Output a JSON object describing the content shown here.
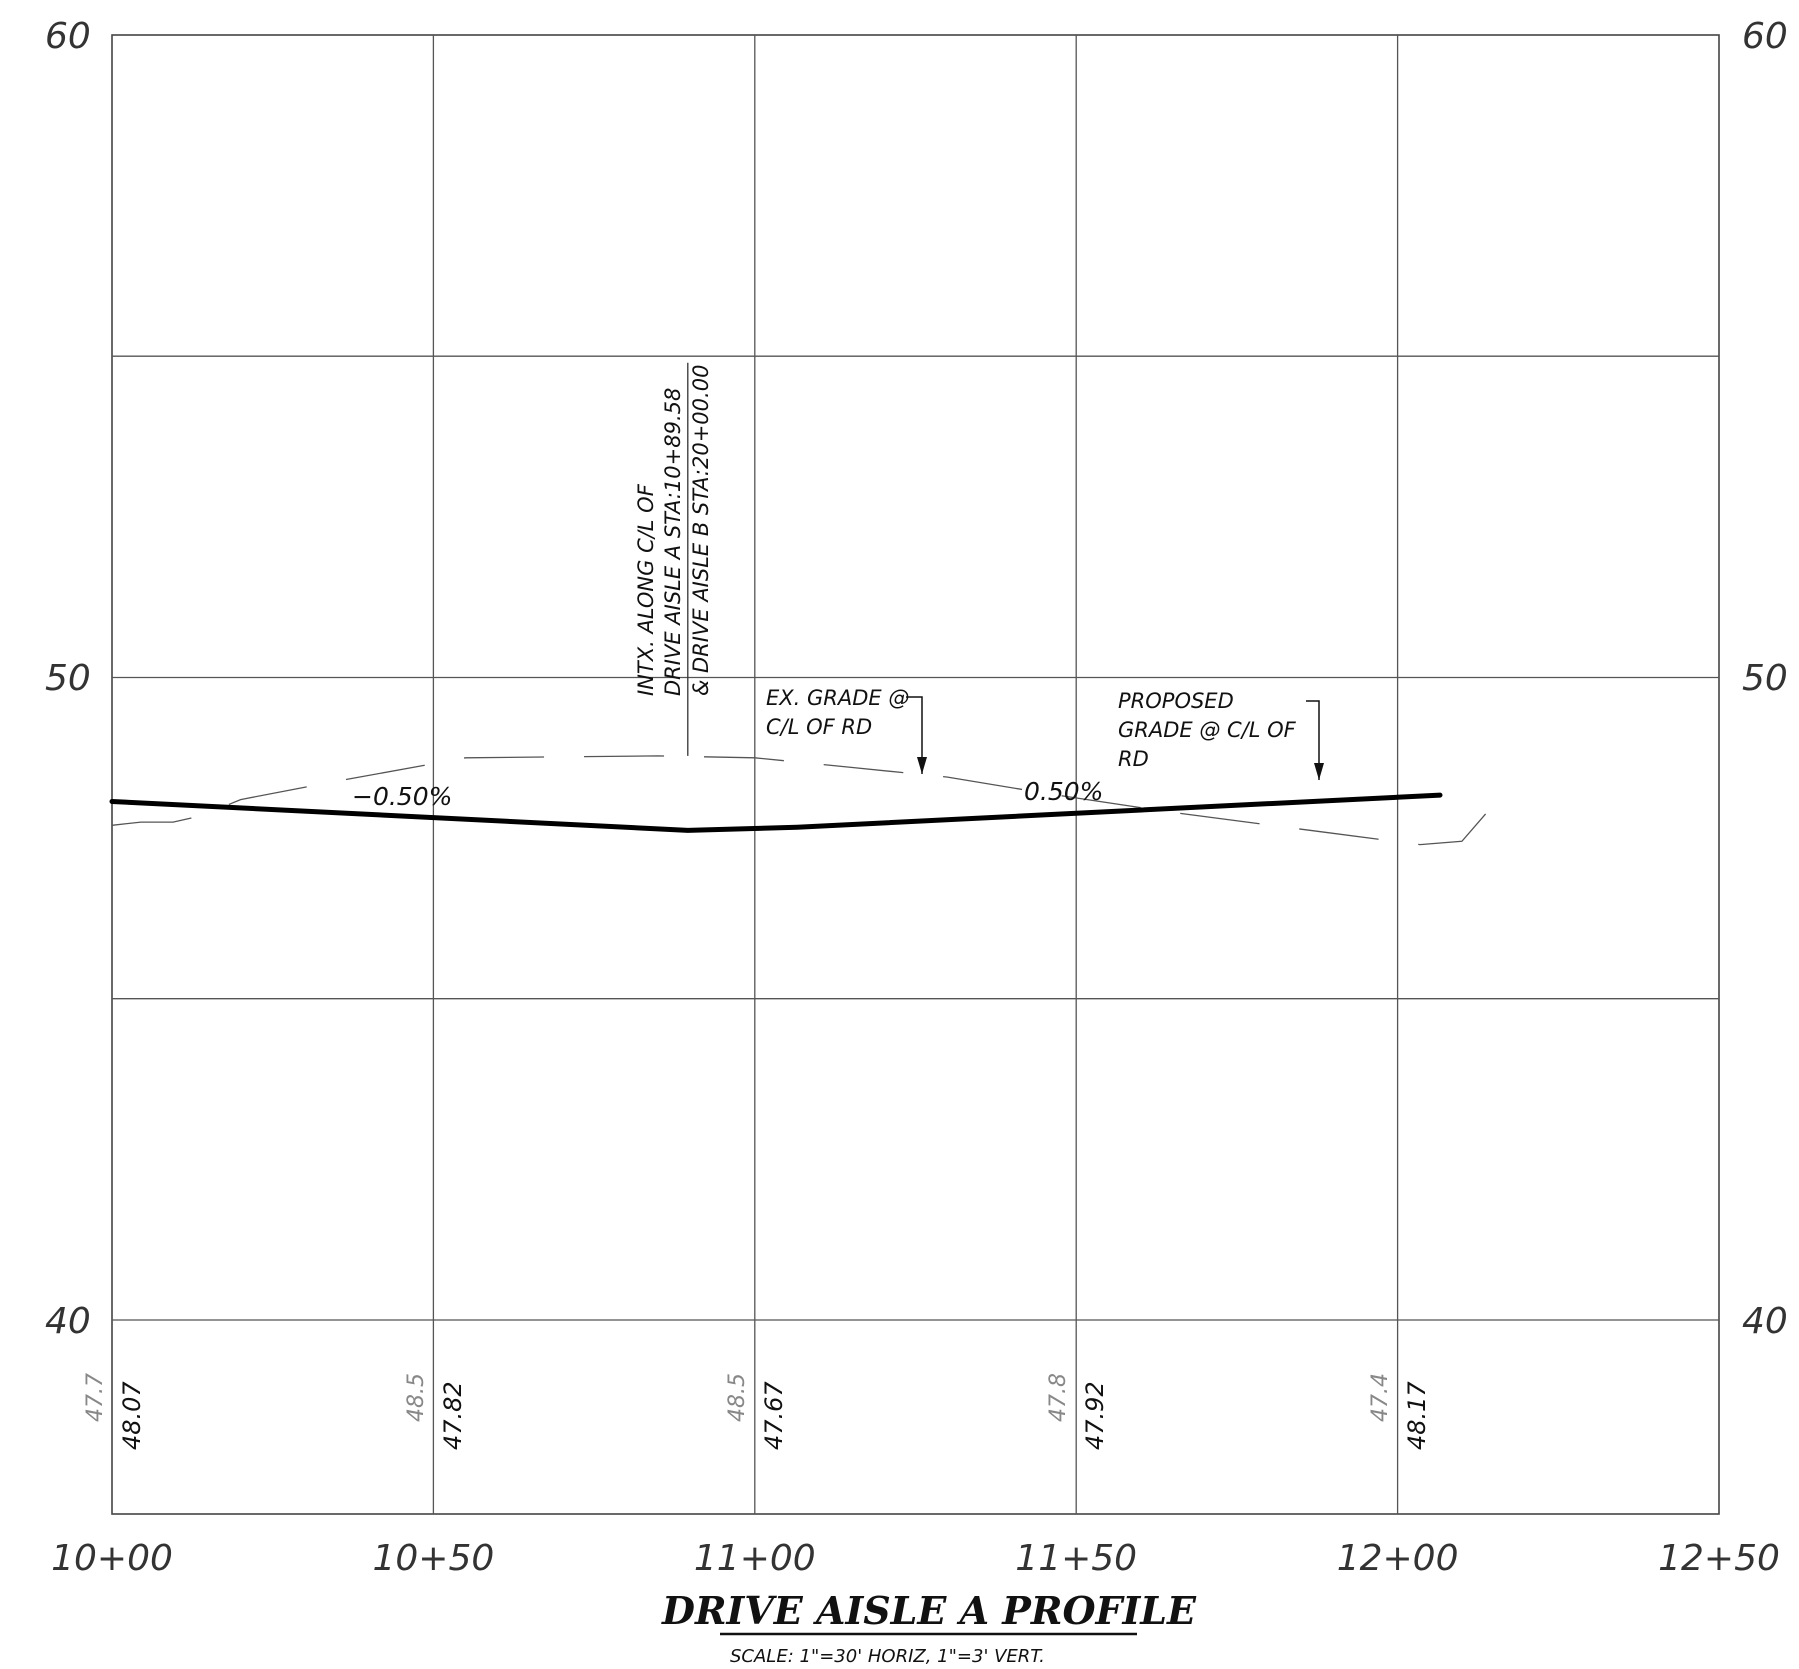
{
  "chart_data": {
    "type": "line",
    "title": "DRIVE AISLE A PROFILE",
    "subtitle": "SCALE:  1\"=30'  HORIZ,  1\"=3'  VERT.",
    "x_ticks": [
      "10+00",
      "10+50",
      "11+00",
      "11+50",
      "12+00",
      "12+50"
    ],
    "x_range_ft": [
      1000,
      1250
    ],
    "y_ticks": [
      "60",
      "50",
      "40"
    ],
    "ylim": [
      37,
      60
    ],
    "grid": true,
    "series": [
      {
        "style": "solid-heavy",
        "points": [
          [
            1000,
            48.07
          ],
          [
            1089.58,
            47.62
          ],
          [
            1106.6,
            47.67
          ],
          [
            1206.6,
            48.17
          ]
        ]
      },
      {
        "style": "dashed",
        "points": [
          [
            1000,
            47.7
          ],
          [
            1004.5,
            47.75
          ],
          [
            1009.5,
            47.75
          ],
          [
            1014,
            47.85
          ],
          [
            1020,
            48.1
          ],
          [
            1033,
            48.35
          ],
          [
            1055,
            48.75
          ],
          [
            1085,
            48.78
          ],
          [
            1100,
            48.75
          ],
          [
            1115,
            48.6
          ],
          [
            1130,
            48.45
          ],
          [
            1145,
            48.2
          ],
          [
            1165,
            47.9
          ],
          [
            1188,
            47.6
          ],
          [
            1203.5,
            47.4
          ],
          [
            1210,
            47.45
          ],
          [
            1216.5,
            48.2
          ]
        ]
      },
      {
        "style": "thin",
        "points": [
          [
            1089.58,
            48.78
          ],
          [
            1089.58,
            54.9
          ]
        ]
      }
    ],
    "data_labels": {
      "proposed": [
        "48.07",
        "47.82",
        "47.67",
        "47.92",
        "48.17"
      ],
      "existing": [
        "47.7",
        "48.5",
        "48.5",
        "47.8",
        "47.4"
      ]
    },
    "annotations": {
      "grade_left": "−0.50%",
      "grade_right": "0.50%",
      "intersection_lines": [
        "INTX. ALONG C/L OF",
        "DRIVE AISLE A STA:10+89.58",
        "& DRIVE AISLE B STA:20+00.00"
      ],
      "ex_grade_lines": [
        "EX. GRADE @",
        "C/L OF RD"
      ],
      "proposed_lines": [
        "PROPOSED",
        "GRADE @ C/L OF",
        "RD"
      ]
    }
  }
}
